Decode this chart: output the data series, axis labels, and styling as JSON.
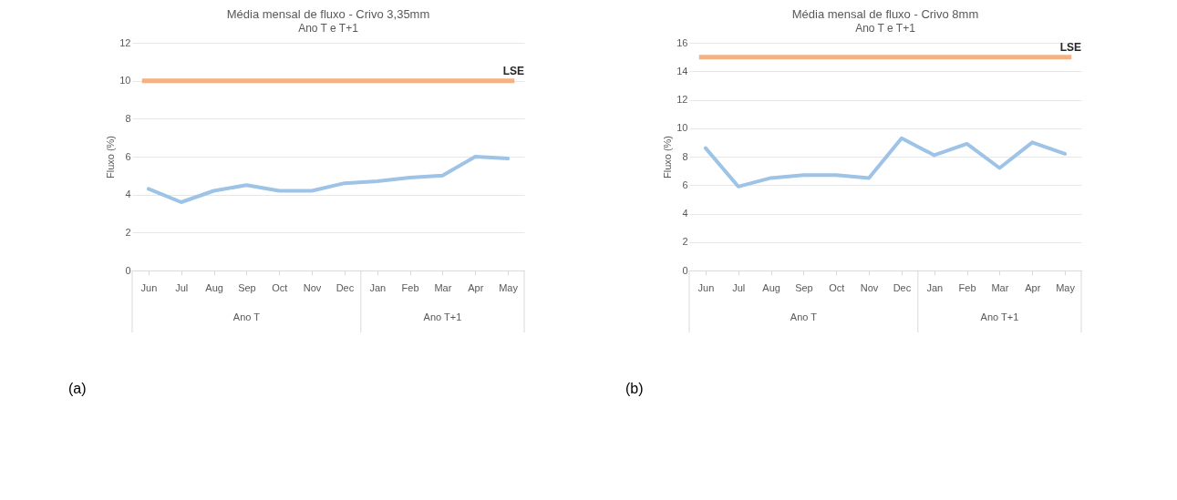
{
  "chart_data": [
    {
      "type": "line",
      "title": "Média mensal de fluxo - Crivo 3,35mm",
      "subtitle": "Ano T e T+1",
      "ylabel": "Fluxo (%)",
      "categories": [
        "Jun",
        "Jul",
        "Aug",
        "Sep",
        "Oct",
        "Nov",
        "Dec",
        "Jan",
        "Feb",
        "Mar",
        "Apr",
        "May"
      ],
      "series": [
        {
          "color": "#9dc3e6",
          "values": [
            4.3,
            3.6,
            4.2,
            4.5,
            4.2,
            4.2,
            4.6,
            4.7,
            4.9,
            5.0,
            6.0,
            5.9
          ]
        }
      ],
      "ylim": [
        0,
        12
      ],
      "yticks": [
        0,
        2,
        4,
        6,
        8,
        10,
        12
      ],
      "grid": "y",
      "marker": "none",
      "ref_lines": [
        {
          "axis": "y",
          "value": 10,
          "label": "LSE",
          "color": "#f4b183"
        }
      ],
      "annotations": [
        "Ano T",
        "Ano T+1",
        "(a)"
      ]
    },
    {
      "type": "line",
      "title": "Média mensal de fluxo - Crivo 8mm",
      "subtitle": "Ano T e T+1",
      "ylabel": "Fluxo (%)",
      "categories": [
        "Jun",
        "Jul",
        "Aug",
        "Sep",
        "Oct",
        "Nov",
        "Dec",
        "Jan",
        "Feb",
        "Mar",
        "Apr",
        "May"
      ],
      "series": [
        {
          "color": "#9dc3e6",
          "values": [
            8.6,
            5.9,
            6.5,
            6.7,
            6.7,
            6.5,
            9.3,
            8.1,
            8.9,
            7.2,
            9.0,
            8.2
          ]
        }
      ],
      "ylim": [
        0,
        16
      ],
      "yticks": [
        0,
        2,
        4,
        6,
        8,
        10,
        12,
        14,
        16
      ],
      "grid": "y",
      "marker": "none",
      "ref_lines": [
        {
          "axis": "y",
          "value": 15,
          "label": "LSE",
          "color": "#f4b183"
        }
      ],
      "annotations": [
        "Ano T",
        "Ano T+1",
        "(b)"
      ]
    }
  ]
}
